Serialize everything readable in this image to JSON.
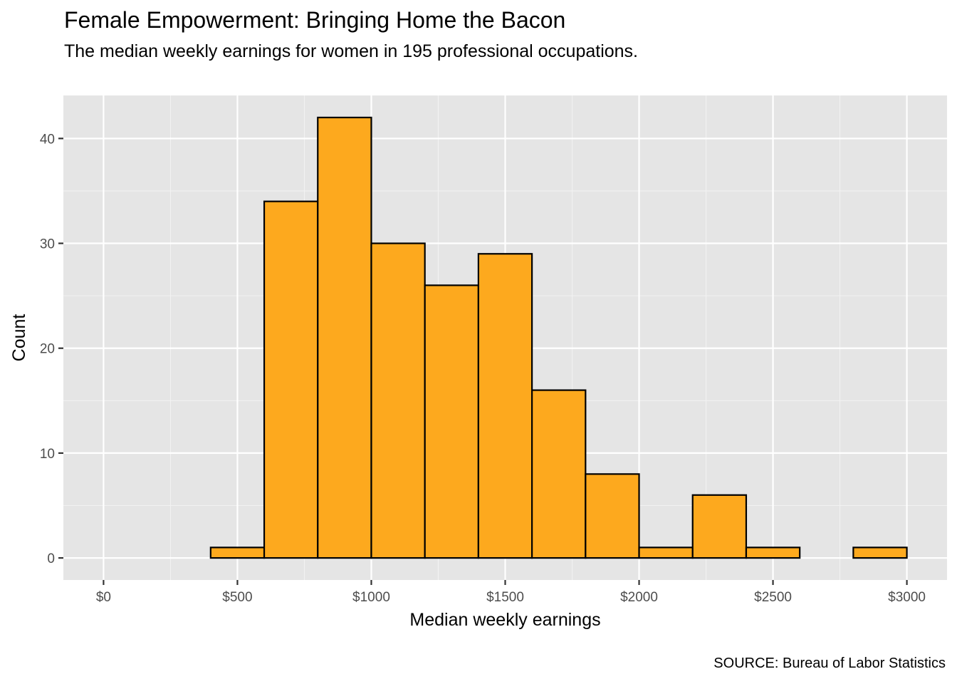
{
  "chart_data": {
    "type": "bar",
    "subtype": "histogram",
    "title": "Female Empowerment: Bringing Home the Bacon",
    "subtitle": "The median weekly earnings for women in 195 professional occupations.",
    "caption": "SOURCE: Bureau of Labor Statistics",
    "xlabel": "Median weekly earnings",
    "ylabel": "Count",
    "bin_width": 200,
    "bins": [
      {
        "start": 0,
        "end": 200,
        "count": 0
      },
      {
        "start": 200,
        "end": 400,
        "count": 0
      },
      {
        "start": 400,
        "end": 600,
        "count": 1
      },
      {
        "start": 600,
        "end": 800,
        "count": 34
      },
      {
        "start": 800,
        "end": 1000,
        "count": 42
      },
      {
        "start": 1000,
        "end": 1200,
        "count": 30
      },
      {
        "start": 1200,
        "end": 1400,
        "count": 26
      },
      {
        "start": 1400,
        "end": 1600,
        "count": 29
      },
      {
        "start": 1600,
        "end": 1800,
        "count": 16
      },
      {
        "start": 1800,
        "end": 2000,
        "count": 8
      },
      {
        "start": 2000,
        "end": 2200,
        "count": 1
      },
      {
        "start": 2200,
        "end": 2400,
        "count": 6
      },
      {
        "start": 2400,
        "end": 2600,
        "count": 1
      },
      {
        "start": 2600,
        "end": 2800,
        "count": 0
      },
      {
        "start": 2800,
        "end": 3000,
        "count": 1
      }
    ],
    "x_ticks": [
      {
        "value": 0,
        "label": "$0"
      },
      {
        "value": 500,
        "label": "$500"
      },
      {
        "value": 1000,
        "label": "$1000"
      },
      {
        "value": 1500,
        "label": "$1500"
      },
      {
        "value": 2000,
        "label": "$2000"
      },
      {
        "value": 2500,
        "label": "$2500"
      },
      {
        "value": 3000,
        "label": "$3000"
      }
    ],
    "y_ticks": [
      {
        "value": 0,
        "label": "0"
      },
      {
        "value": 10,
        "label": "10"
      },
      {
        "value": 20,
        "label": "20"
      },
      {
        "value": 30,
        "label": "30"
      },
      {
        "value": 40,
        "label": "40"
      }
    ],
    "xlim": [
      -150,
      3150
    ],
    "ylim": [
      -2.1,
      44.1
    ],
    "grid": true,
    "colors": {
      "bar_fill": "#FDA91E",
      "bar_stroke": "#000000",
      "panel_bg": "#E5E5E5",
      "grid_major": "#FFFFFF",
      "grid_minor": "#F2F2F2"
    }
  }
}
